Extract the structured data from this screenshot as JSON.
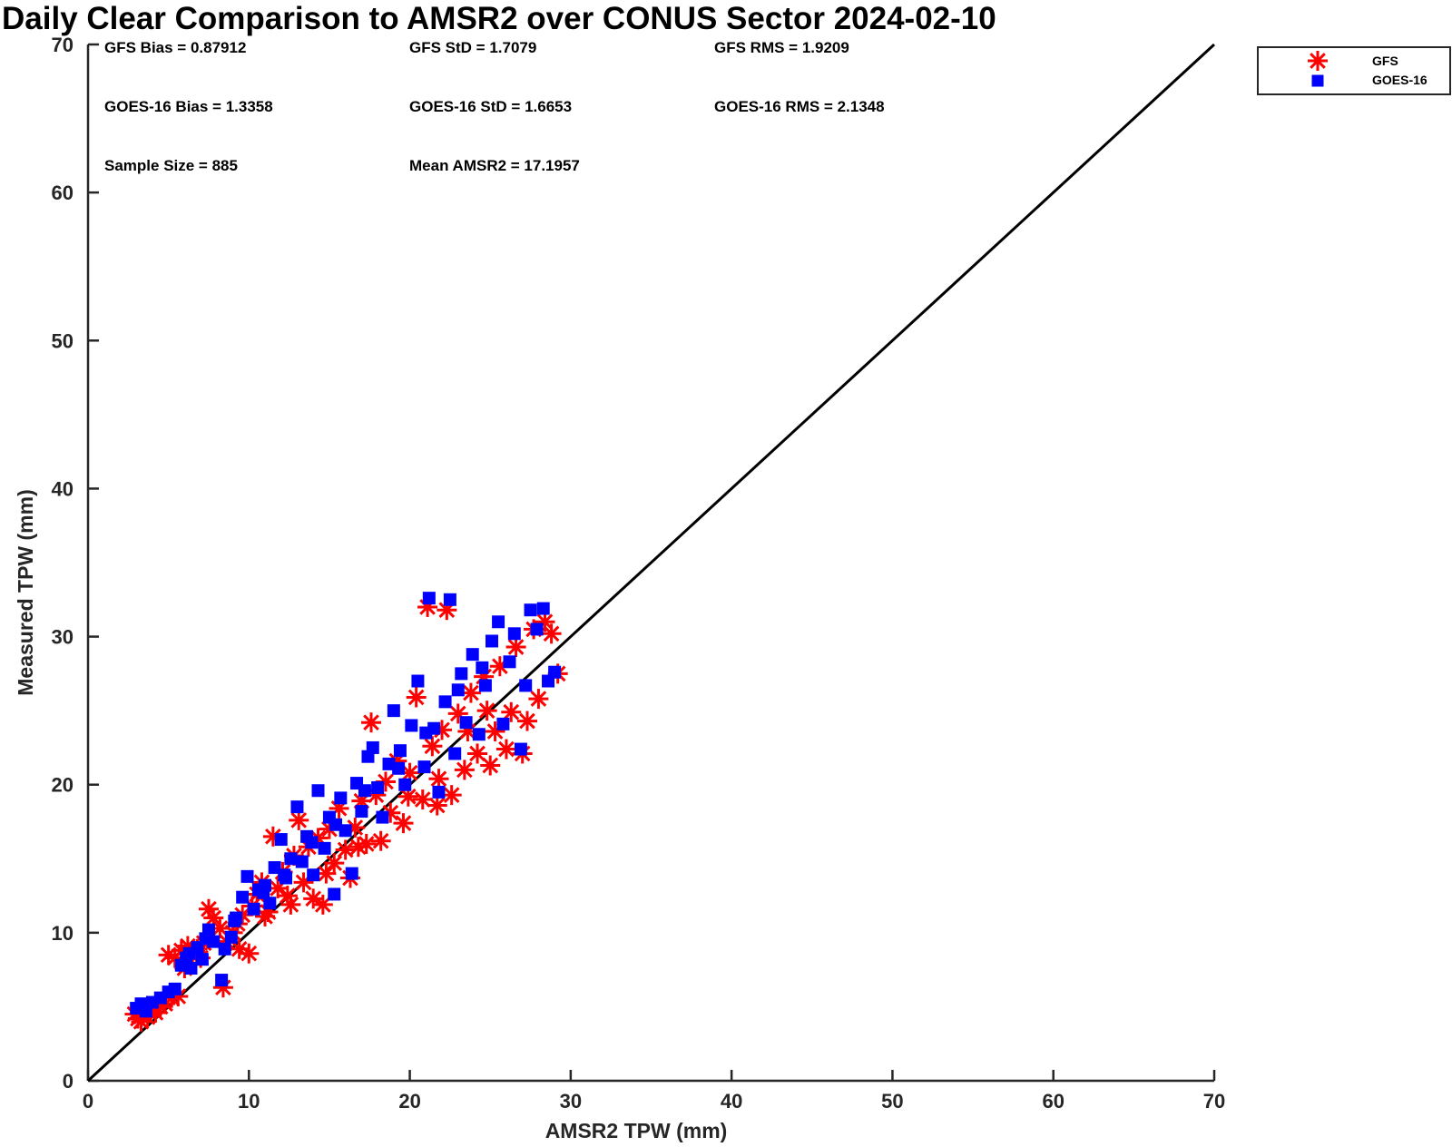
{
  "chart_data": {
    "type": "scatter",
    "title": "Daily Clear Comparison to AMSR2 over CONUS Sector 2024-02-10",
    "xlabel": "AMSR2 TPW (mm)",
    "ylabel": "Measured TPW (mm)",
    "xlim": [
      0,
      70
    ],
    "ylim": [
      0,
      70
    ],
    "xticks": [
      "0",
      "10",
      "20",
      "30",
      "40",
      "50",
      "60",
      "70"
    ],
    "yticks": [
      "0",
      "10",
      "20",
      "30",
      "40",
      "50",
      "60",
      "70"
    ],
    "grid": false,
    "legend_position": "top-right",
    "reference_line": {
      "x": [
        0,
        70
      ],
      "y": [
        0,
        70
      ],
      "color": "#000000"
    },
    "stats": [
      {
        "text": "GFS Bias = 0.87912"
      },
      {
        "text": "GFS StD = 1.7079"
      },
      {
        "text": "GFS RMS = 1.9209"
      },
      {
        "text": "GOES-16 Bias = 1.3358"
      },
      {
        "text": "GOES-16 StD = 1.6653"
      },
      {
        "text": "GOES-16 RMS = 2.1348"
      },
      {
        "text": "Sample Size = 885"
      },
      {
        "text": "Mean AMSR2 = 17.1957"
      }
    ],
    "series": [
      {
        "name": "GFS",
        "marker": "asterisk",
        "color": "#ff0000",
        "points": [
          [
            2.9,
            4.5
          ],
          [
            3.1,
            4.2
          ],
          [
            3.3,
            4.0
          ],
          [
            3.5,
            4.6
          ],
          [
            3.7,
            4.3
          ],
          [
            3.9,
            4.8
          ],
          [
            4.2,
            4.6
          ],
          [
            4.5,
            5.0
          ],
          [
            4.8,
            5.2
          ],
          [
            5.2,
            5.6
          ],
          [
            5.6,
            5.7
          ],
          [
            5.0,
            8.5
          ],
          [
            5.4,
            8.3
          ],
          [
            5.8,
            8.8
          ],
          [
            6.2,
            9.1
          ],
          [
            6.5,
            8.4
          ],
          [
            6.8,
            8.9
          ],
          [
            7.2,
            9.3
          ],
          [
            7.5,
            11.6
          ],
          [
            7.8,
            11.0
          ],
          [
            8.2,
            10.3
          ],
          [
            8.4,
            6.3
          ],
          [
            8.6,
            9.4
          ],
          [
            9.0,
            10.0
          ],
          [
            9.3,
            10.6
          ],
          [
            9.6,
            11.2
          ],
          [
            10.0,
            8.6
          ],
          [
            10.2,
            11.8
          ],
          [
            10.5,
            12.6
          ],
          [
            10.8,
            13.4
          ],
          [
            11.2,
            11.4
          ],
          [
            11.5,
            16.5
          ],
          [
            11.8,
            13.0
          ],
          [
            12.1,
            14.1
          ],
          [
            12.4,
            12.5
          ],
          [
            12.8,
            15.2
          ],
          [
            13.1,
            17.6
          ],
          [
            13.4,
            13.4
          ],
          [
            13.7,
            15.8
          ],
          [
            14.0,
            12.3
          ],
          [
            14.3,
            16.4
          ],
          [
            14.6,
            11.9
          ],
          [
            15.0,
            17.0
          ],
          [
            15.3,
            14.7
          ],
          [
            15.6,
            18.4
          ],
          [
            16.0,
            15.6
          ],
          [
            16.3,
            13.7
          ],
          [
            16.6,
            17.1
          ],
          [
            17.0,
            18.9
          ],
          [
            17.3,
            16.0
          ],
          [
            17.6,
            24.2
          ],
          [
            17.9,
            19.3
          ],
          [
            18.2,
            16.2
          ],
          [
            18.5,
            20.2
          ],
          [
            18.8,
            18.1
          ],
          [
            19.2,
            21.6
          ],
          [
            19.6,
            17.4
          ],
          [
            20.0,
            20.8
          ],
          [
            20.4,
            25.9
          ],
          [
            20.8,
            19.0
          ],
          [
            21.1,
            32.0
          ],
          [
            21.4,
            22.6
          ],
          [
            21.7,
            18.6
          ],
          [
            22.0,
            23.7
          ],
          [
            22.3,
            31.8
          ],
          [
            22.6,
            19.3
          ],
          [
            23.0,
            24.8
          ],
          [
            23.4,
            21.0
          ],
          [
            23.8,
            26.2
          ],
          [
            24.2,
            22.1
          ],
          [
            24.6,
            27.3
          ],
          [
            25.0,
            21.3
          ],
          [
            25.3,
            23.6
          ],
          [
            25.6,
            28.0
          ],
          [
            26.0,
            22.4
          ],
          [
            26.3,
            24.9
          ],
          [
            26.6,
            29.3
          ],
          [
            27.0,
            22.1
          ],
          [
            27.3,
            24.3
          ],
          [
            27.7,
            30.5
          ],
          [
            28.0,
            25.8
          ],
          [
            28.4,
            31.0
          ],
          [
            28.8,
            30.2
          ],
          [
            29.2,
            27.5
          ],
          [
            24.8,
            25.0
          ],
          [
            23.6,
            23.6
          ],
          [
            21.8,
            20.4
          ],
          [
            19.9,
            19.2
          ],
          [
            16.8,
            15.8
          ],
          [
            14.8,
            14.0
          ],
          [
            12.6,
            11.9
          ],
          [
            11.0,
            11.1
          ],
          [
            9.4,
            8.9
          ],
          [
            7.0,
            8.3
          ],
          [
            6.0,
            7.6
          ]
        ]
      },
      {
        "name": "GOES-16",
        "marker": "square",
        "color": "#0000ff",
        "points": [
          [
            3.0,
            4.9
          ],
          [
            3.3,
            5.2
          ],
          [
            3.6,
            4.7
          ],
          [
            4.0,
            5.3
          ],
          [
            4.5,
            5.6
          ],
          [
            5.0,
            6.0
          ],
          [
            5.4,
            6.2
          ],
          [
            5.8,
            7.8
          ],
          [
            6.1,
            8.3
          ],
          [
            6.4,
            7.6
          ],
          [
            6.8,
            9.0
          ],
          [
            7.1,
            8.2
          ],
          [
            7.5,
            10.2
          ],
          [
            7.8,
            9.4
          ],
          [
            8.3,
            6.8
          ],
          [
            8.5,
            8.9
          ],
          [
            8.9,
            9.7
          ],
          [
            9.2,
            11.0
          ],
          [
            9.6,
            12.4
          ],
          [
            9.9,
            13.8
          ],
          [
            10.3,
            11.6
          ],
          [
            10.6,
            12.9
          ],
          [
            11.0,
            13.2
          ],
          [
            11.3,
            12.0
          ],
          [
            11.6,
            14.4
          ],
          [
            12.0,
            16.3
          ],
          [
            12.3,
            13.7
          ],
          [
            12.6,
            15.0
          ],
          [
            13.0,
            18.5
          ],
          [
            13.3,
            14.8
          ],
          [
            13.6,
            16.5
          ],
          [
            14.0,
            13.9
          ],
          [
            14.3,
            19.6
          ],
          [
            14.7,
            15.7
          ],
          [
            15.0,
            17.8
          ],
          [
            15.3,
            12.6
          ],
          [
            15.7,
            19.1
          ],
          [
            16.0,
            16.9
          ],
          [
            16.4,
            14.0
          ],
          [
            16.7,
            20.1
          ],
          [
            17.0,
            18.2
          ],
          [
            17.4,
            21.9
          ],
          [
            17.7,
            22.5
          ],
          [
            18.0,
            19.8
          ],
          [
            18.3,
            17.8
          ],
          [
            18.7,
            21.4
          ],
          [
            19.0,
            25.0
          ],
          [
            19.4,
            22.3
          ],
          [
            19.7,
            20.0
          ],
          [
            20.1,
            24.0
          ],
          [
            20.5,
            27.0
          ],
          [
            20.9,
            21.2
          ],
          [
            21.2,
            32.6
          ],
          [
            21.5,
            23.8
          ],
          [
            21.8,
            19.5
          ],
          [
            22.2,
            25.6
          ],
          [
            22.5,
            32.5
          ],
          [
            22.8,
            22.1
          ],
          [
            23.2,
            27.5
          ],
          [
            23.5,
            24.2
          ],
          [
            23.9,
            28.8
          ],
          [
            24.3,
            23.4
          ],
          [
            24.7,
            26.7
          ],
          [
            25.1,
            29.7
          ],
          [
            25.5,
            31.0
          ],
          [
            25.8,
            24.1
          ],
          [
            26.2,
            28.3
          ],
          [
            26.5,
            30.2
          ],
          [
            26.9,
            22.4
          ],
          [
            27.2,
            26.7
          ],
          [
            27.5,
            31.8
          ],
          [
            27.9,
            30.5
          ],
          [
            28.3,
            31.9
          ],
          [
            28.6,
            27.0
          ],
          [
            29.0,
            27.6
          ],
          [
            24.5,
            27.9
          ],
          [
            23.0,
            26.4
          ],
          [
            21.0,
            23.5
          ],
          [
            19.3,
            21.1
          ],
          [
            17.2,
            19.6
          ],
          [
            15.4,
            17.3
          ],
          [
            13.9,
            16.1
          ],
          [
            12.2,
            13.9
          ],
          [
            10.9,
            12.7
          ],
          [
            9.1,
            10.8
          ],
          [
            7.3,
            9.6
          ],
          [
            6.3,
            8.6
          ]
        ]
      }
    ]
  }
}
